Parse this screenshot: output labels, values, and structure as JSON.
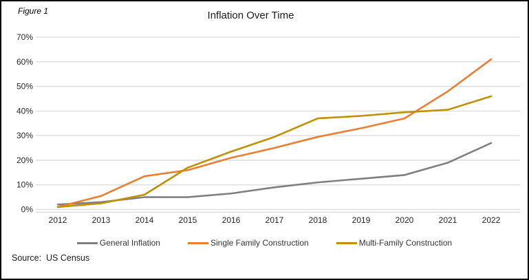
{
  "figure_label": "Figure 1",
  "title": "Inflation Over Time",
  "source": "Source:  US Census",
  "chart_data": {
    "type": "line",
    "title": "Inflation Over Time",
    "x": [
      "2012",
      "2013",
      "2014",
      "2015",
      "2016",
      "2017",
      "2018",
      "2019",
      "2020",
      "2021",
      "2022"
    ],
    "series": [
      {
        "name": "General Inflation",
        "color": "#7F7F7F",
        "values": [
          2,
          3,
          5,
          5,
          6.5,
          9,
          11,
          12.5,
          14,
          19,
          27
        ]
      },
      {
        "name": "Single Family Construction",
        "color": "#ED7D31",
        "values": [
          1,
          5.5,
          13.5,
          16,
          21,
          25,
          29.5,
          33,
          37,
          48,
          61
        ]
      },
      {
        "name": "Multi-Family Construction",
        "color": "#BF9000",
        "values": [
          1,
          2.5,
          6,
          17,
          23.5,
          29.5,
          37,
          38,
          39.5,
          40.5,
          46
        ]
      }
    ],
    "ylim": [
      0,
      70
    ],
    "ytick_step": 10,
    "ytick_suffix": "%",
    "grid": true,
    "legend_position": "bottom",
    "gridline_color": "#D9D9D9",
    "tick_label_color": "#262626"
  }
}
